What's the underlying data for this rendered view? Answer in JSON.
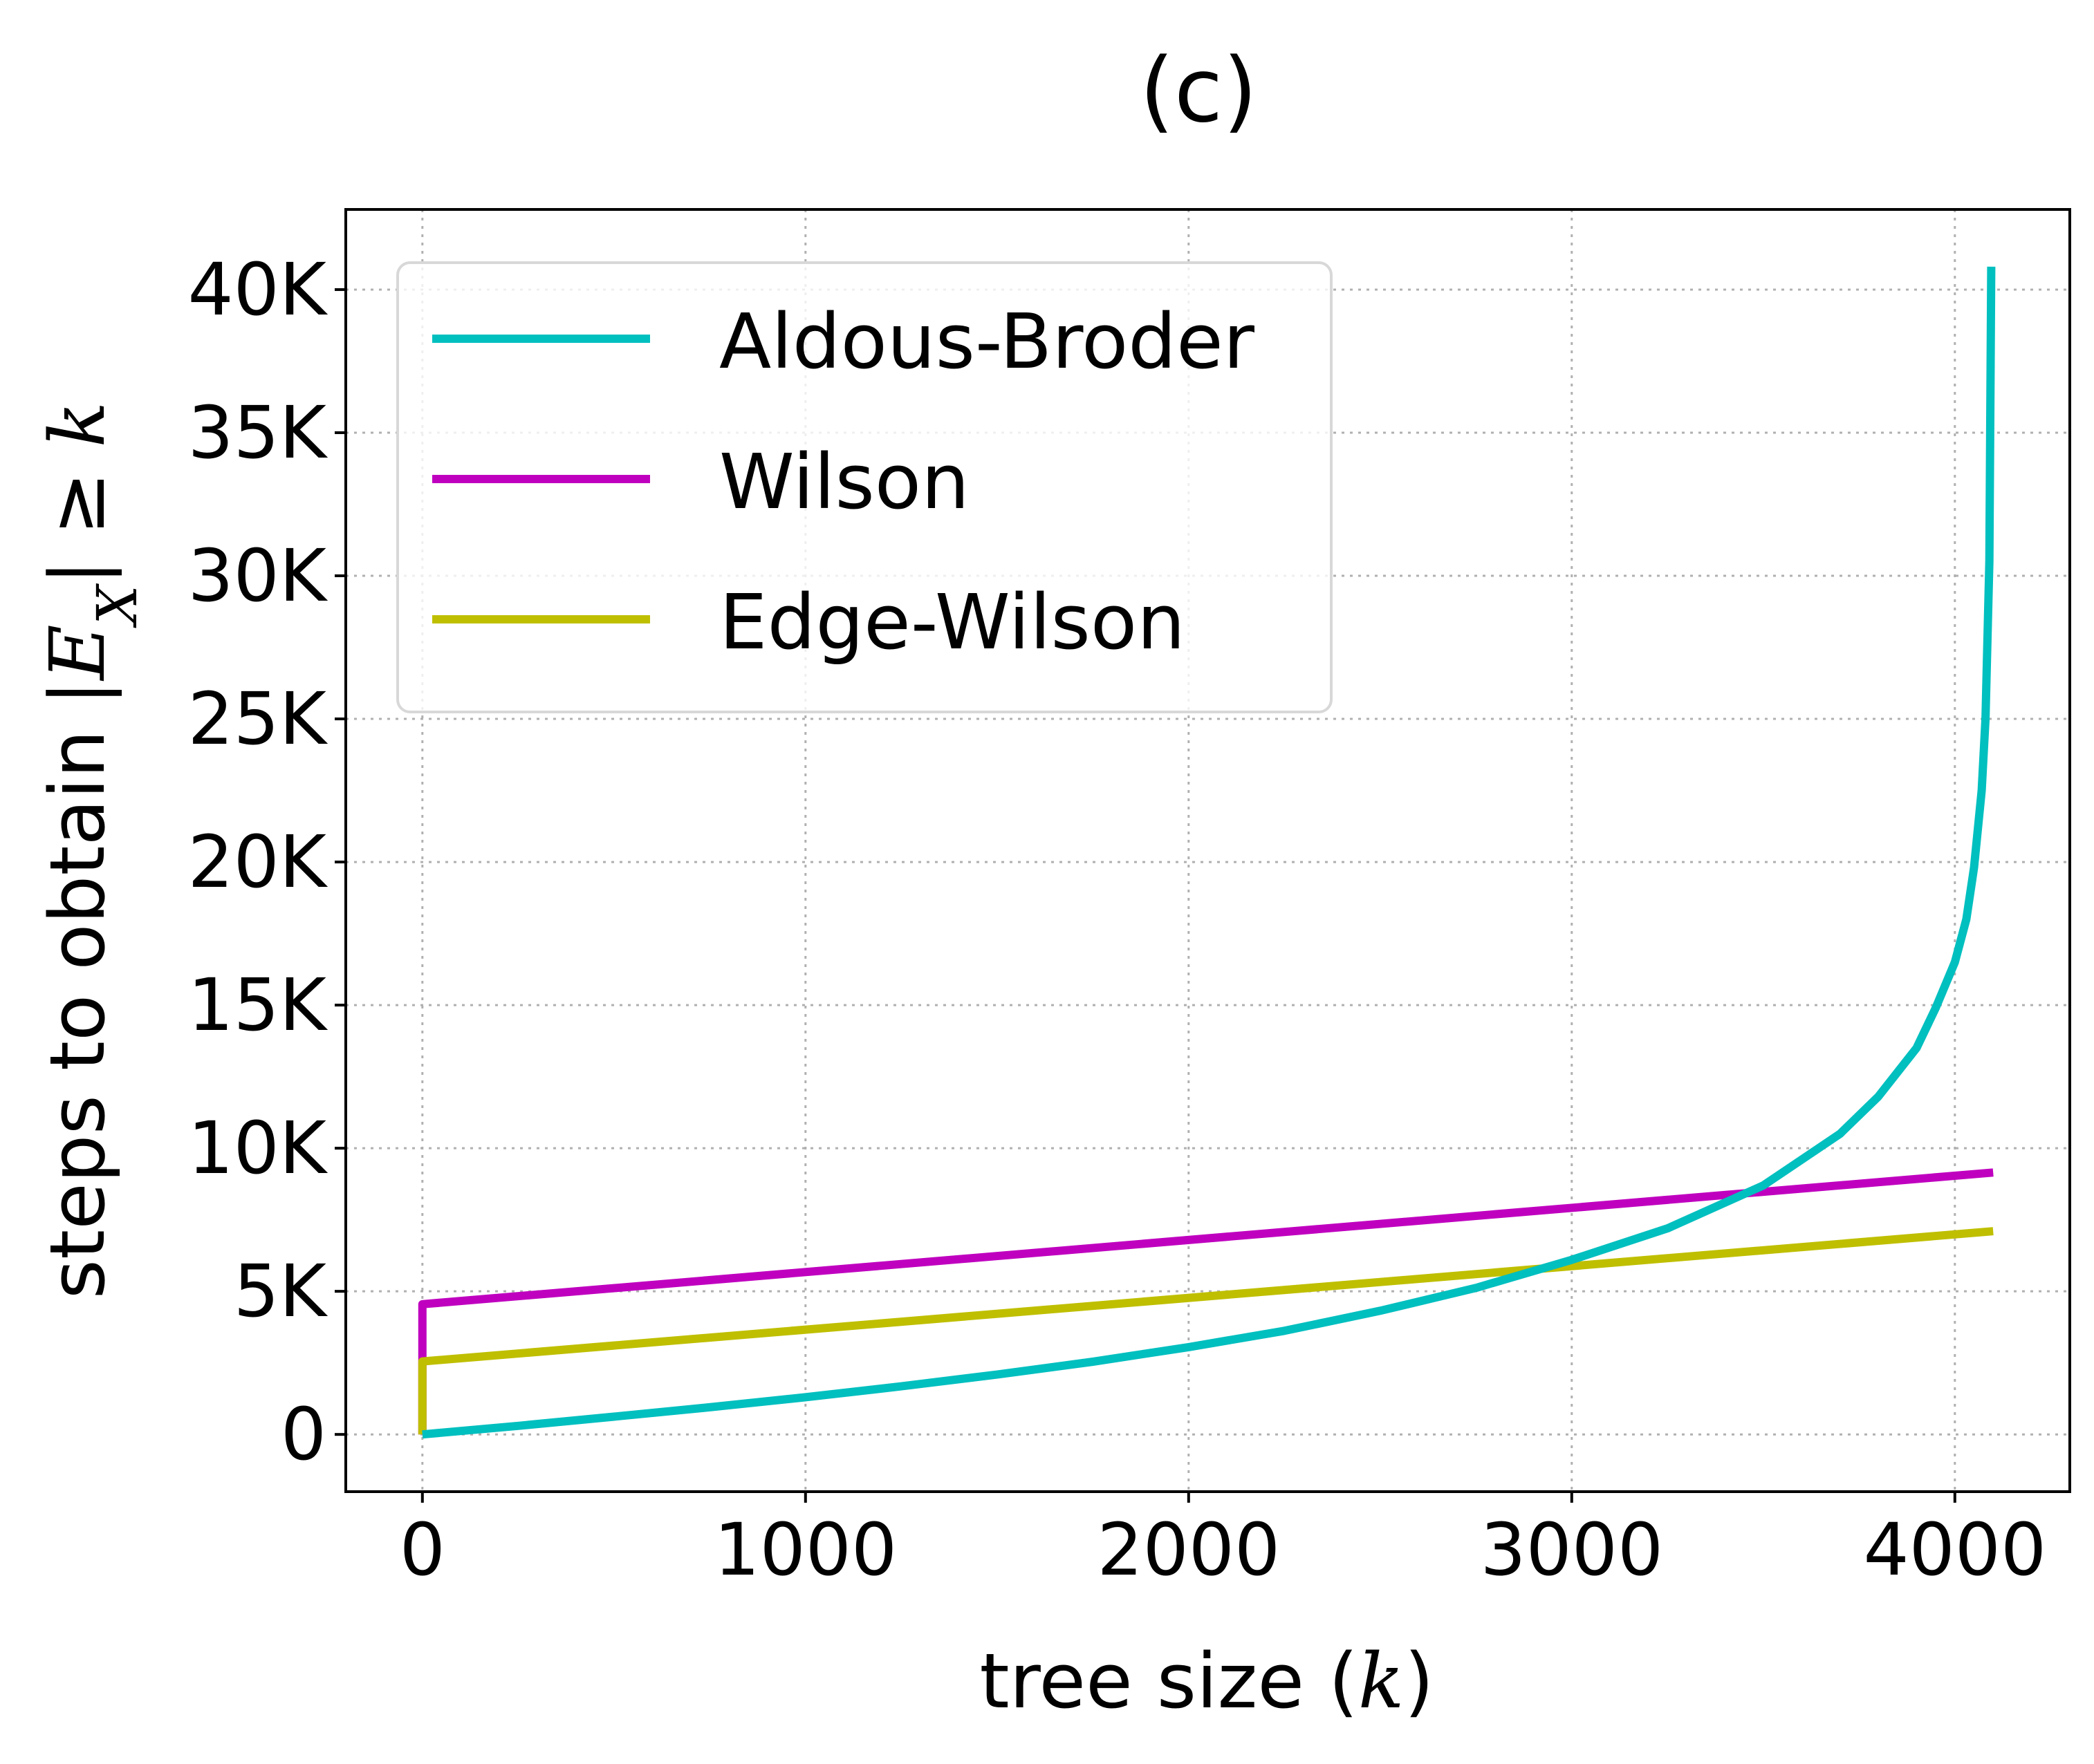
{
  "chart_data": {
    "type": "line",
    "title": "(c)",
    "xlabel": "tree size (k)",
    "ylabel": "steps to obtain |E_X| ≥ k",
    "xlabel_parts": {
      "text": "tree size ",
      "paren_open": "(",
      "sym": "k",
      "paren_close": ")"
    },
    "ylabel_parts": {
      "text": "steps to obtain ",
      "bar1": "|",
      "sym_e": "E",
      "sub": "X",
      "bar2": "|",
      "geq": " ≥ ",
      "sym_k": "k"
    },
    "xlim": [
      -200,
      4300
    ],
    "ylim": [
      -2000,
      42800
    ],
    "grid": true,
    "legend_position": "upper-left",
    "x_ticks": [
      0,
      1000,
      2000,
      3000,
      4000
    ],
    "x_tick_labels": [
      "0",
      "1000",
      "2000",
      "3000",
      "4000"
    ],
    "y_ticks": [
      0,
      5000,
      10000,
      15000,
      20000,
      25000,
      30000,
      35000,
      40000
    ],
    "y_tick_labels": [
      "0",
      "5K",
      "10K",
      "15K",
      "20K",
      "25K",
      "30K",
      "35K",
      "40K"
    ],
    "series": [
      {
        "name": "Aldous-Broder",
        "color": "#00bfbf",
        "x": [
          0,
          250,
          500,
          750,
          1000,
          1250,
          1500,
          1750,
          2000,
          2250,
          2500,
          2750,
          3000,
          3250,
          3500,
          3700,
          3800,
          3900,
          3950,
          4000,
          4030,
          4050,
          4070,
          4080,
          4090,
          4095
        ],
        "y": [
          0,
          300,
          620,
          950,
          1300,
          1680,
          2090,
          2540,
          3050,
          3620,
          4320,
          5120,
          6100,
          7200,
          8700,
          10500,
          11800,
          13500,
          14900,
          16500,
          18000,
          19800,
          22500,
          25000,
          30500,
          40800
        ]
      },
      {
        "name": "Wilson",
        "color": "#bf00bf",
        "x": [
          0,
          0,
          4100
        ],
        "y": [
          0,
          4550,
          9150
        ]
      },
      {
        "name": "Edge-Wilson",
        "color": "#bfbf00",
        "x": [
          0,
          0,
          4100
        ],
        "y": [
          0,
          2550,
          7100
        ]
      }
    ]
  }
}
